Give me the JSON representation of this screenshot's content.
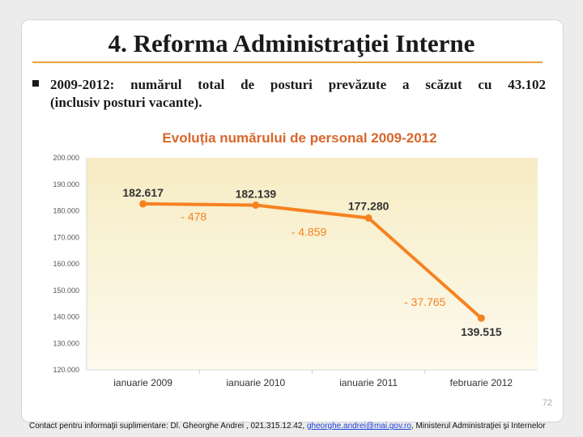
{
  "slide": {
    "title": "4. Reforma Administraţiei Interne",
    "bullet_line1": "2009-2012: numărul total de posturi prevăzute a scăzut cu 43.102",
    "bullet_line2": "(inclusiv posturi vacante).",
    "page_number": "72",
    "footer_prefix": "Contact pentru informaţii suplimentare: Dl. Gheorghe Andrei , 021.315.12.42, ",
    "footer_email": "gheorghe.andrei@mai.gov.ro",
    "footer_suffix": ", Ministerul Administraţiei şi Internelor"
  },
  "chart_data": {
    "type": "line",
    "title": "Evoluția numărului de personal 2009-2012",
    "categories": [
      "ianuarie 2009",
      "ianuarie 2010",
      "ianuarie 2011",
      "februarie 2012"
    ],
    "series": [
      {
        "values": [
          182617,
          182139,
          177280,
          139515
        ]
      }
    ],
    "data_labels": [
      "182.617",
      "182.139",
      "177.280",
      "139.515"
    ],
    "change_labels": [
      "- 478",
      "- 4.859",
      "- 37.765"
    ],
    "ylim": [
      120000,
      200000
    ],
    "yticks": [
      {
        "value": 120000,
        "label": "120.000"
      },
      {
        "value": 130000,
        "label": "130.000"
      },
      {
        "value": 140000,
        "label": "140.000"
      },
      {
        "value": 150000,
        "label": "150.000"
      },
      {
        "value": 160000,
        "label": "160.000"
      },
      {
        "value": 170000,
        "label": "170.000"
      },
      {
        "value": 180000,
        "label": "180.000"
      },
      {
        "value": 190000,
        "label": "190.000"
      },
      {
        "value": 200000,
        "label": "200.000"
      }
    ],
    "grid": false,
    "colors": {
      "line": "#f68220",
      "marker": "#f68220",
      "title": "#d9662a",
      "data_label": "#333333",
      "change_label": "#f68220",
      "plot_bg_top": "#f6ecc4",
      "plot_bg_bottom": "#fdfaee"
    }
  }
}
